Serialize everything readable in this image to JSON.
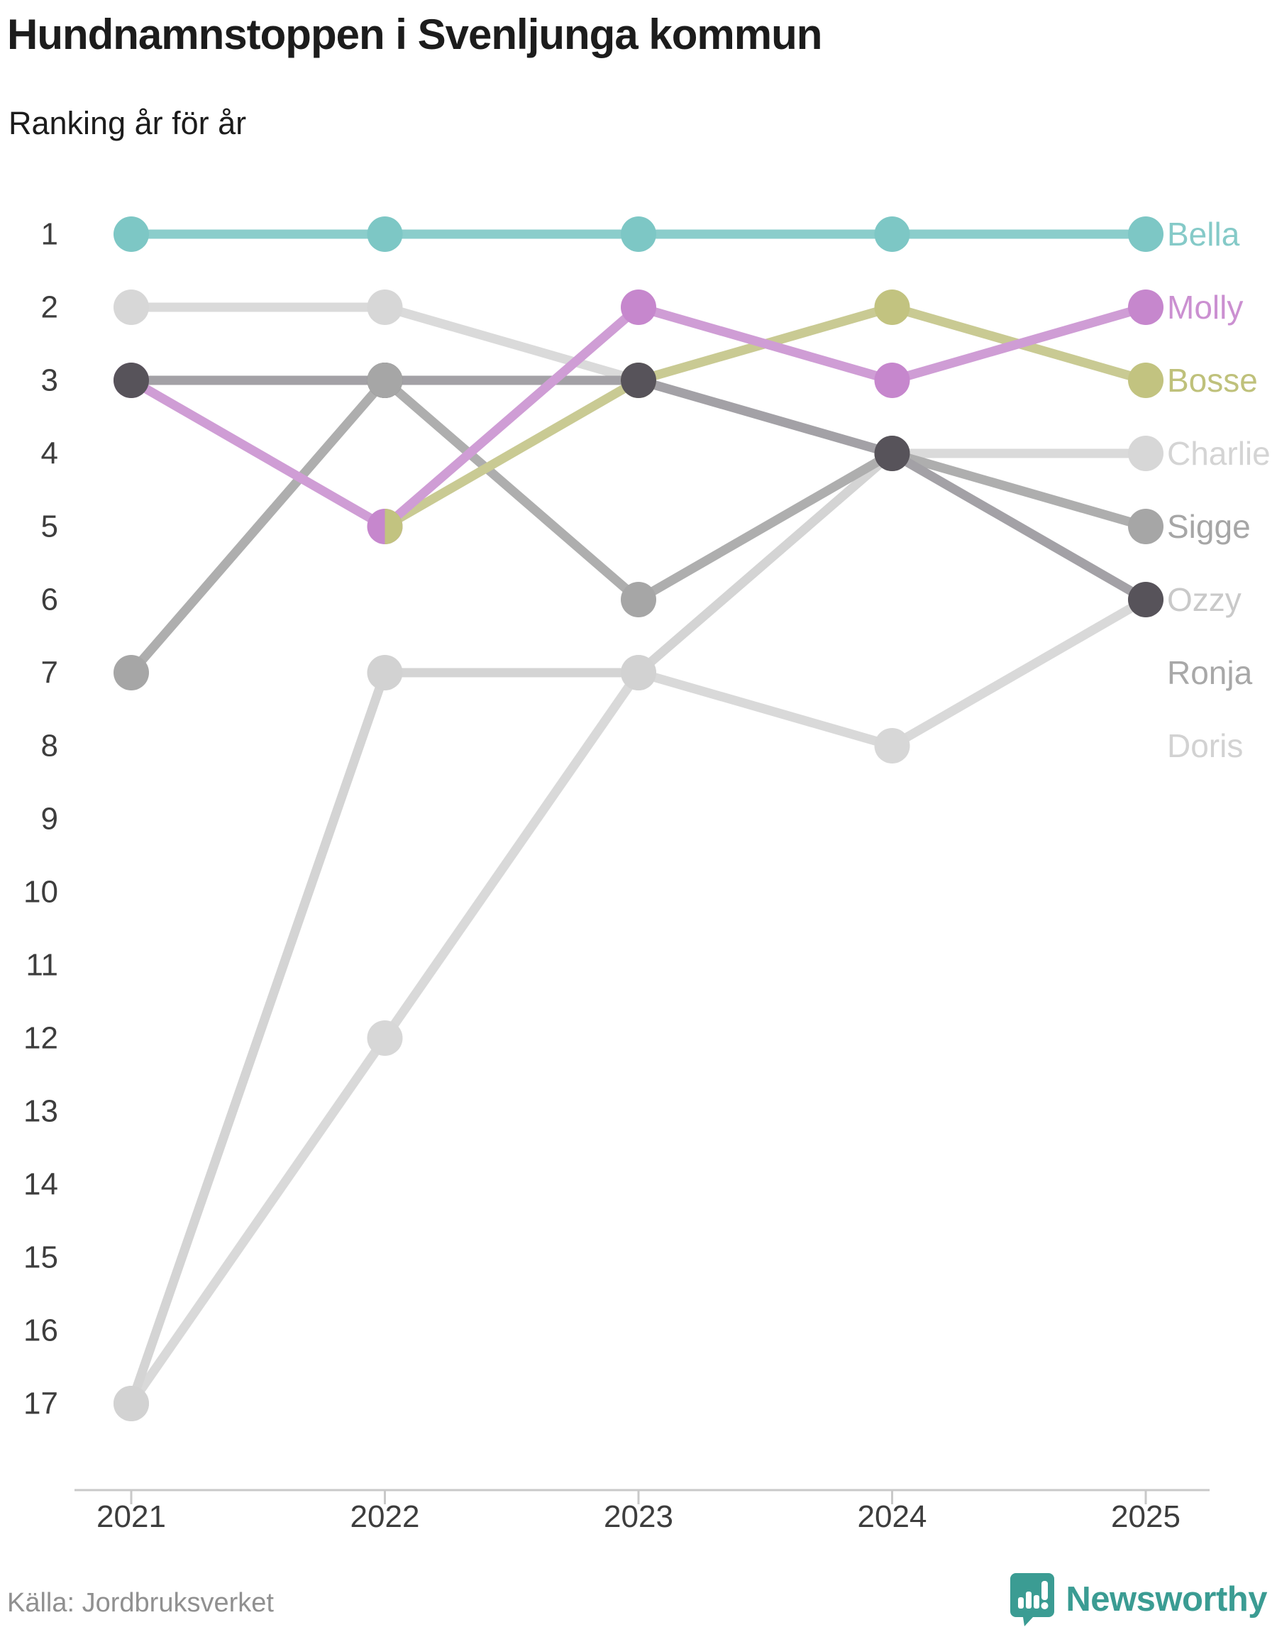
{
  "header": {
    "title": "Hundnamnstoppen i Svenljunga kommun",
    "subtitle": "Ranking år för år"
  },
  "footer": {
    "source": "Källa: Jordbruksverket",
    "brand": "Newsworthy",
    "brand_color": "#3b9c93"
  },
  "chart_data": {
    "type": "line",
    "variant": "bump-ranking",
    "title": "Hundnamnstoppen i Svenljunga kommun",
    "subtitle": "Ranking år för år",
    "x": [
      2021,
      2022,
      2023,
      2024,
      2025
    ],
    "yticks": [
      1,
      2,
      3,
      4,
      5,
      6,
      7,
      8,
      9,
      10,
      11,
      12,
      13,
      14,
      15,
      16,
      17
    ],
    "ylim": [
      1,
      17
    ],
    "y_inverted": true,
    "grid": false,
    "legend_position": "right-end-labels",
    "axis_color": "#c9c9c9",
    "tick_text_color": "#3d3d3d",
    "series": [
      {
        "name": "Bella",
        "values": [
          1,
          1,
          1,
          1,
          1
        ],
        "marker_color": "#7dc7c5",
        "line_color": "#8bcdcb",
        "label_color": "#85cac8",
        "label_slot": 1
      },
      {
        "name": "Molly",
        "values": [
          3,
          5,
          2,
          3,
          2
        ],
        "marker_color": "#c687cd",
        "line_color": "#cf9dd5",
        "label_color": "#cb90d1",
        "label_slot": 2
      },
      {
        "name": "Bosse",
        "values": [
          null,
          5,
          3,
          2,
          3
        ],
        "marker_color": "#c2c380",
        "line_color": "#c9ca93",
        "label_color": "#bfc17b",
        "label_slot": 3
      },
      {
        "name": "Charlie",
        "values": [
          2,
          2,
          3,
          4,
          4
        ],
        "marker_color": "#d7d7d7",
        "line_color": "#dadada",
        "label_color": "#d4d4d4",
        "label_slot": 4
      },
      {
        "name": "Sigge",
        "values": [
          7,
          3,
          6,
          4,
          5
        ],
        "marker_color": "#a6a6a6",
        "line_color": "#aeaeae",
        "label_color": "#a6a6a6",
        "label_slot": 5
      },
      {
        "name": "Ozzy",
        "values": [
          3,
          3,
          3,
          4,
          6
        ],
        "marker_color": "#57535a",
        "line_color": "#a3a1a6",
        "label_color": "#c9c9c9",
        "label_slot": 6
      },
      {
        "name": "Ronja",
        "values": [
          17,
          7,
          7,
          4,
          null
        ],
        "marker_color": "#d2d2d2",
        "line_color": "#d4d4d4",
        "label_color": "#a8a8a8",
        "label_slot": 7
      },
      {
        "name": "Doris",
        "values": [
          17,
          12,
          7,
          8,
          6
        ],
        "marker_color": "#d7d7d7",
        "line_color": "#d9d9d9",
        "label_color": "#d2d2d2",
        "label_slot": 8
      }
    ],
    "line_draw_order": [
      "Doris",
      "Ronja",
      "Charlie",
      "Sigge",
      "Ozzy",
      "Bosse",
      "Molly",
      "Bella"
    ],
    "marker_draw_order": [
      "Doris",
      "Ronja",
      "Charlie",
      "Sigge",
      "Bosse",
      "Molly",
      "Ozzy",
      "Bella"
    ],
    "marker_overrides": {
      "split_marker": {
        "year": 2022,
        "rank": 5,
        "left_series": "Molly",
        "right_series": "Bosse"
      },
      "topmost_markers": [
        {
          "year": 2022,
          "rank": 3,
          "series": "Sigge"
        }
      ]
    }
  }
}
